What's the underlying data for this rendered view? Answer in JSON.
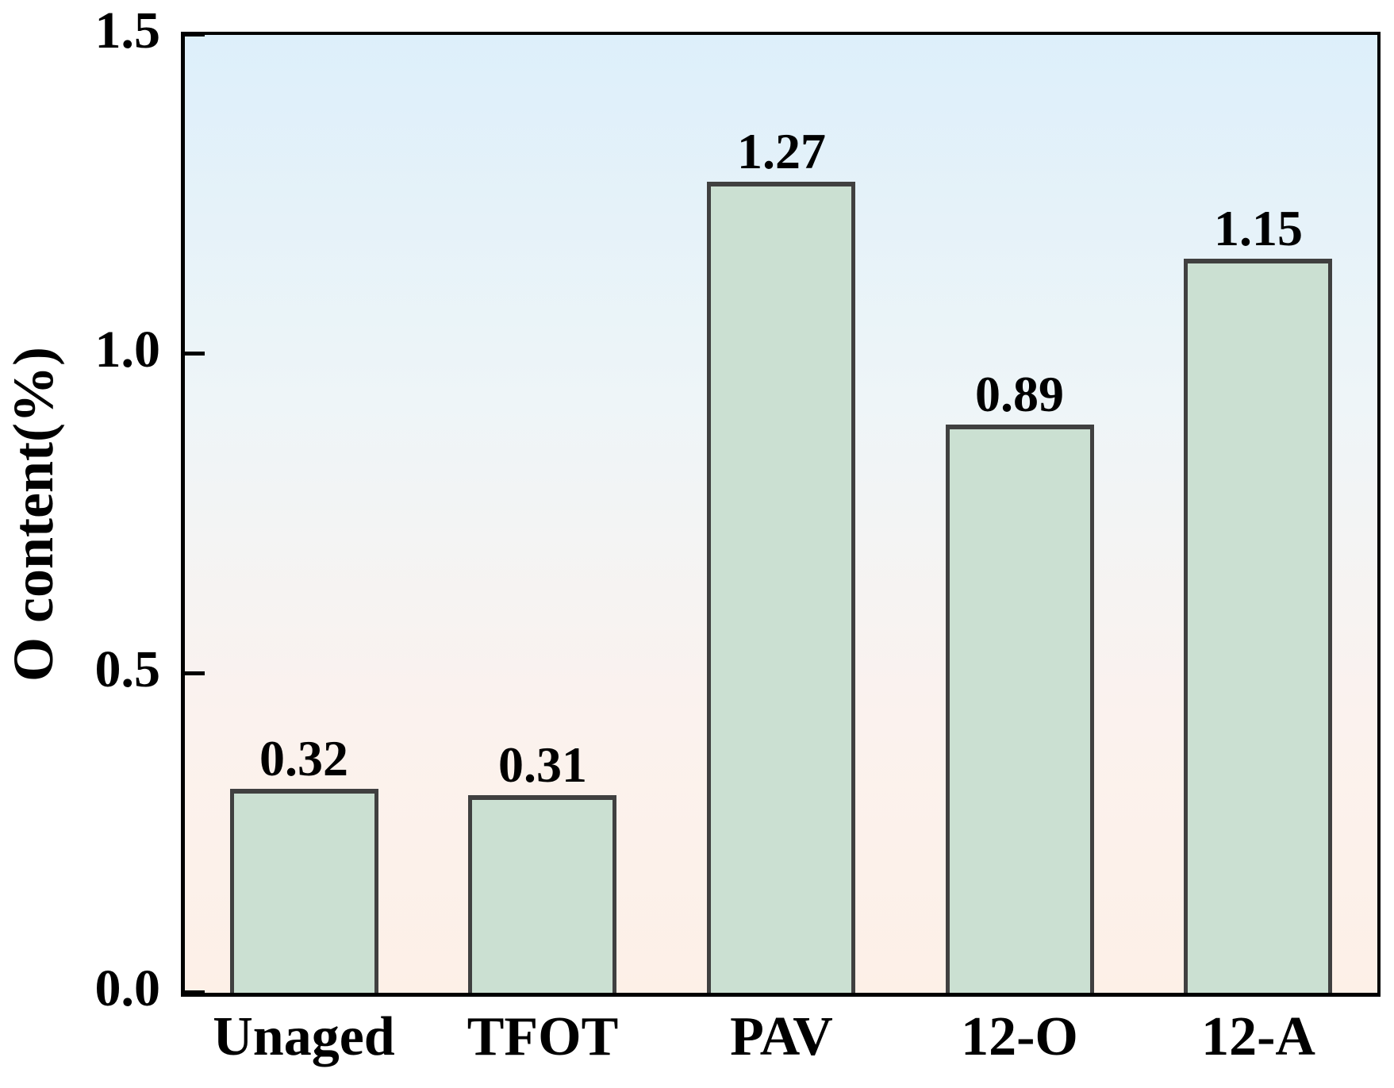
{
  "colors": {
    "bar_fill": "#cbe0d2",
    "bar_border": "#404040",
    "background_gradient_top": "#ddeffa",
    "background_gradient_mid1": "#eef5f8",
    "background_gradient_mid2": "#fbf2ee",
    "background_gradient_bottom": "#fdf0e7",
    "axis": "#000000",
    "text": "#000000"
  },
  "chart_data": {
    "type": "bar",
    "title": "",
    "xlabel": "",
    "ylabel": "O content(%)",
    "categories": [
      "Unaged",
      "TFOT",
      "PAV",
      "12-O",
      "12-A"
    ],
    "values": [
      0.32,
      0.31,
      1.27,
      0.89,
      1.15
    ],
    "bar_labels": [
      "0.32",
      "0.31",
      "1.27",
      "0.89",
      "1.15"
    ],
    "ylim": [
      0,
      1.5
    ],
    "yticks": [
      0.0,
      0.5,
      1.0,
      1.5
    ],
    "ytick_labels": [
      "0.0",
      "0.5",
      "1.0",
      "1.5"
    ],
    "grid": false,
    "legend": null
  }
}
